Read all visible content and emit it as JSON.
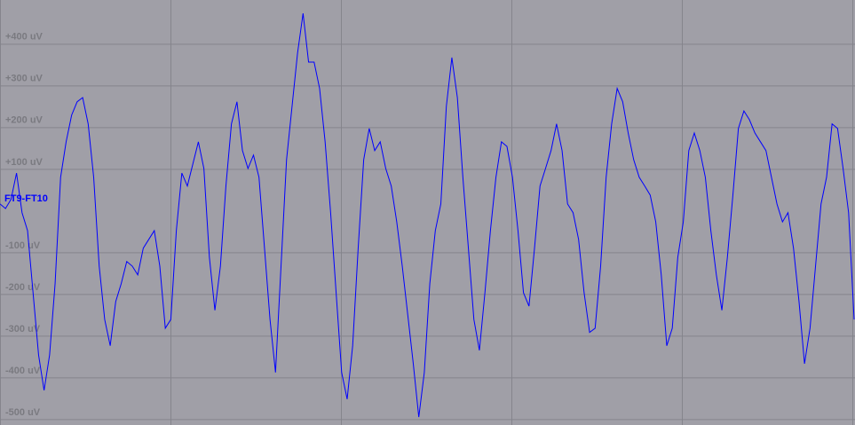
{
  "chart_data": {
    "type": "line",
    "series": [
      {
        "name": "FT9-FT10",
        "color": "#0000ff",
        "values": [
          17,
          6,
          28,
          91,
          -4,
          -47,
          -196,
          -345,
          -430,
          -345,
          -174,
          81,
          166,
          230,
          262,
          272,
          209,
          81,
          -132,
          -260,
          -323,
          -217,
          -174,
          -121,
          -132,
          -153,
          -89,
          -68,
          -47,
          -132,
          -281,
          -260,
          -47,
          91,
          60,
          113,
          166,
          102,
          -111,
          -238,
          -132,
          60,
          209,
          262,
          145,
          102,
          134,
          81,
          -89,
          -260,
          -387,
          -132,
          123,
          251,
          379,
          474,
          357,
          357,
          294,
          166,
          -4,
          -196,
          -387,
          -451,
          -323,
          -89,
          123,
          198,
          145,
          166,
          102,
          60,
          -26,
          -132,
          -249,
          -366,
          -494,
          -387,
          -174,
          -47,
          17,
          251,
          368,
          272,
          81,
          -89,
          -260,
          -334,
          -196,
          -47,
          81,
          166,
          155,
          81,
          -47,
          -196,
          -228,
          -89,
          60,
          102,
          145,
          209,
          145,
          17,
          -4,
          -68,
          -196,
          -291,
          -281,
          -132,
          81,
          209,
          294,
          262,
          187,
          123,
          81,
          60,
          38,
          -26,
          -153,
          -323,
          -281,
          -111,
          -26,
          145,
          187,
          145,
          81,
          -47,
          -153,
          -238,
          -111,
          38,
          198,
          240,
          219,
          187,
          166,
          145,
          81,
          17,
          -26,
          -4,
          -89,
          -217,
          -366,
          -281,
          -132,
          17,
          81,
          209,
          198,
          102,
          -4,
          -260
        ]
      }
    ],
    "ylim": [
      -513,
      506
    ],
    "yticks": [
      {
        "value": 400,
        "label": "+400 uV"
      },
      {
        "value": 300,
        "label": "+300 uV"
      },
      {
        "value": 200,
        "label": "+200 uV"
      },
      {
        "value": 100,
        "label": "+100 uV"
      },
      {
        "value": -100,
        "label": "-100 uV"
      },
      {
        "value": -200,
        "label": "-200 uV"
      },
      {
        "value": -300,
        "label": "-300 uV"
      },
      {
        "value": -400,
        "label": "-400 uV"
      },
      {
        "value": -500,
        "label": "-500 uV"
      }
    ],
    "grid": true
  }
}
